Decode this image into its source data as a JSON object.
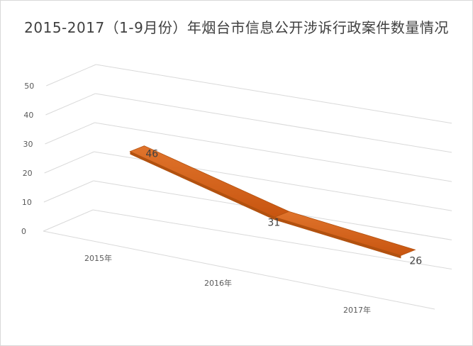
{
  "chart_data": {
    "type": "line",
    "title": "2015-2017（1-9月份）年烟台市信息公开涉诉行政案件数量情况",
    "categories": [
      "2015年",
      "2016年",
      "2017年"
    ],
    "series": [
      {
        "values": [
          46,
          31,
          26
        ]
      }
    ],
    "yticks": [
      0,
      10,
      20,
      30,
      40,
      50
    ],
    "ylim": [
      0,
      50
    ],
    "grid": true,
    "legend": "none",
    "three_d": true,
    "colors": {
      "line_face": "#d8641c",
      "line_edge": "#b2510f",
      "grid": "#d9d9d9",
      "text": "#595959"
    }
  }
}
